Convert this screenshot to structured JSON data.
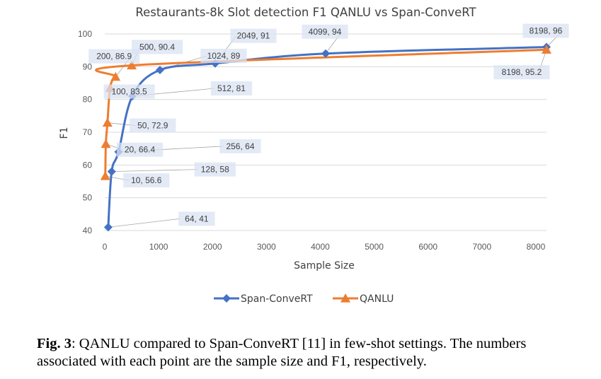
{
  "chart_data": {
    "type": "line",
    "title": "Restaurants-8k Slot detection F1 QANLU vs Span-ConveRT",
    "xlabel": "Sample Size",
    "ylabel": "F1",
    "xlim": [
      0,
      8198
    ],
    "ylim": [
      40,
      100
    ],
    "xticks": [
      "0",
      "1000",
      "2000",
      "3000",
      "4000",
      "5000",
      "6000",
      "7000",
      "8000"
    ],
    "yticks": [
      "40",
      "50",
      "60",
      "70",
      "80",
      "90",
      "100"
    ],
    "grid": "horizontal",
    "legend_position": "bottom",
    "series": [
      {
        "name": "Span-ConveRT",
        "color": "#4472C4",
        "marker": "diamond",
        "x": [
          64,
          128,
          256,
          512,
          1024,
          2049,
          4099,
          8198
        ],
        "y": [
          41,
          58,
          64,
          81,
          89,
          91,
          94,
          96
        ],
        "labels": [
          "64, 41",
          "128, 58",
          "256, 64",
          "512, 81",
          "1024, 89",
          "2049, 91",
          "4099, 94",
          "8198, 96"
        ]
      },
      {
        "name": "QANLU",
        "color": "#ED7D31",
        "marker": "triangle",
        "x": [
          10,
          20,
          50,
          100,
          200,
          500,
          8198
        ],
        "y": [
          56.6,
          66.4,
          72.9,
          83.5,
          86.9,
          90.4,
          95.2
        ],
        "labels": [
          "10, 56.6",
          "20, 66.4",
          "50, 72.9",
          "100, 83.5",
          "200, 86.9",
          "500, 90.4",
          "8198, 95.2"
        ]
      }
    ]
  },
  "caption": {
    "fig_label": "Fig. 3",
    "text": ": QANLU compared to Span-ConveRT [11] in few-shot settings. The numbers associated with each point are the sample size and F1, respectively."
  }
}
